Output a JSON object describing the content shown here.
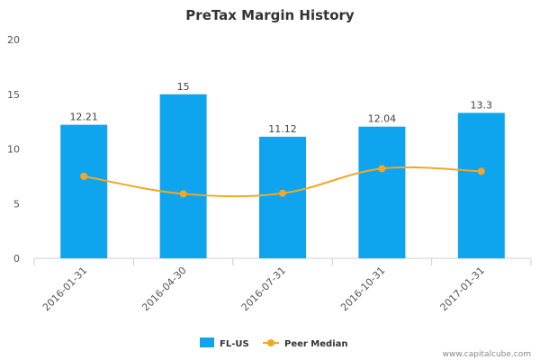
{
  "chart_data": {
    "type": "bar",
    "title": "PreTax Margin History",
    "categories": [
      "2016-01-31",
      "2016-04-30",
      "2016-07-31",
      "2016-10-31",
      "2017-01-31"
    ],
    "ylim": [
      0,
      20
    ],
    "yticks": [
      0,
      5,
      10,
      15,
      20
    ],
    "grid": false,
    "legend_position": "bottom",
    "series": [
      {
        "name": "FL-US",
        "type": "bar",
        "color": "#0ea5ee",
        "values": [
          12.21,
          15,
          11.12,
          12.04,
          13.3
        ],
        "labels": [
          "12.21",
          "15",
          "11.12",
          "12.04",
          "13.3"
        ]
      },
      {
        "name": "Peer Median",
        "type": "line",
        "color": "#f5a623",
        "values": [
          7.5,
          5.9,
          5.95,
          8.2,
          7.95
        ]
      }
    ]
  },
  "footer": {
    "credit": "www.capitalcube.com"
  }
}
